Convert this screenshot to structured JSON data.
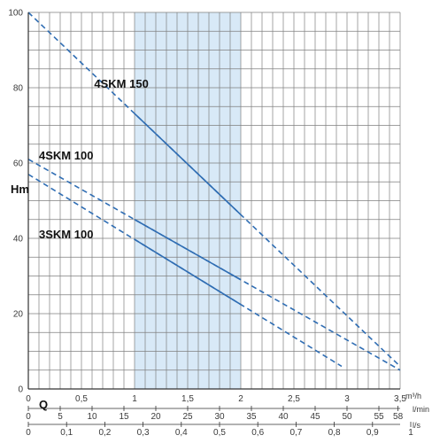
{
  "chart_data": {
    "type": "line",
    "x_unit": "m³/h",
    "y_axis_label": "Hm",
    "q_label": "Q",
    "xlim": [
      0,
      3.5
    ],
    "ylim": [
      0,
      100
    ],
    "grid": true,
    "x_ticks": [
      "0",
      "0,5",
      "1",
      "1,5",
      "2",
      "2,5",
      "3",
      "3,5"
    ],
    "y_ticks": [
      "0",
      "20",
      "40",
      "60",
      "80",
      "100"
    ],
    "secondary_axes": [
      {
        "unit": "l/min",
        "ticks": [
          {
            "label": "0",
            "value": 0
          },
          {
            "label": "5",
            "value": 5
          },
          {
            "label": "10",
            "value": 10
          },
          {
            "label": "15",
            "value": 15
          },
          {
            "label": "20",
            "value": 20
          },
          {
            "label": "25",
            "value": 25
          },
          {
            "label": "30",
            "value": 30
          },
          {
            "label": "35",
            "value": 35
          },
          {
            "label": "40",
            "value": 40
          },
          {
            "label": "45",
            "value": 45
          },
          {
            "label": "50",
            "value": 50
          },
          {
            "label": "55",
            "value": 55
          },
          {
            "label": "58",
            "value": 58
          }
        ]
      },
      {
        "unit": "l/s",
        "ticks": [
          {
            "label": "0",
            "value": 0
          },
          {
            "label": "0,1",
            "value": 0.1
          },
          {
            "label": "0,2",
            "value": 0.2
          },
          {
            "label": "0,3",
            "value": 0.3
          },
          {
            "label": "0,4",
            "value": 0.4
          },
          {
            "label": "0,5",
            "value": 0.5
          },
          {
            "label": "0,6",
            "value": 0.6
          },
          {
            "label": "0,7",
            "value": 0.7
          },
          {
            "label": "0,8",
            "value": 0.8
          },
          {
            "label": "0,9",
            "value": 0.9
          },
          {
            "label": "1",
            "value": 1
          }
        ]
      }
    ],
    "series": [
      {
        "name": "4SKM 150",
        "points": [
          [
            0,
            100
          ],
          [
            3.5,
            6
          ]
        ],
        "solid_range": [
          1,
          2
        ],
        "label_at": [
          0.62,
          80
        ]
      },
      {
        "name": "4SKM 100",
        "points": [
          [
            0,
            61
          ],
          [
            3.5,
            5
          ]
        ],
        "solid_range": [
          1,
          2
        ],
        "label_at": [
          0.1,
          61
        ]
      },
      {
        "name": "3SKM 100",
        "points": [
          [
            0,
            57
          ],
          [
            2.95,
            6
          ]
        ],
        "solid_range": [
          1,
          2
        ],
        "label_at": [
          0.1,
          40
        ]
      }
    ],
    "recommended_range": {
      "x": [
        1,
        2
      ]
    },
    "colors": {
      "curve": "#2f6db3",
      "band": "#d8e9f7",
      "high_band": "#a4cdee",
      "grid": "#7f7f7f",
      "axis": "#333333"
    }
  }
}
